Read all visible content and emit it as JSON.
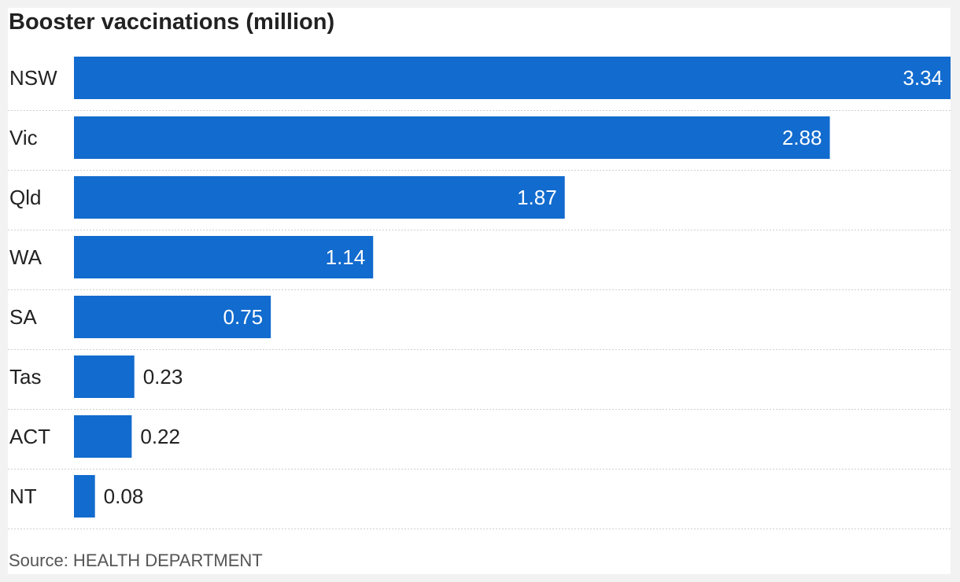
{
  "chart_data": {
    "type": "bar",
    "orientation": "horizontal",
    "title": "Booster vaccinations (million)",
    "categories": [
      "NSW",
      "Vic",
      "Qld",
      "WA",
      "SA",
      "Tas",
      "ACT",
      "NT"
    ],
    "values": [
      3.34,
      2.88,
      1.87,
      1.14,
      0.75,
      0.23,
      0.22,
      0.08
    ],
    "value_labels": [
      "3.34",
      "2.88",
      "1.87",
      "1.14",
      "0.75",
      "0.23",
      "0.22",
      "0.08"
    ],
    "xlim": [
      0,
      3.34
    ],
    "grid": false,
    "legend": "none",
    "bar_color": "#126bce",
    "source": "Source: HEALTH DEPARTMENT"
  }
}
